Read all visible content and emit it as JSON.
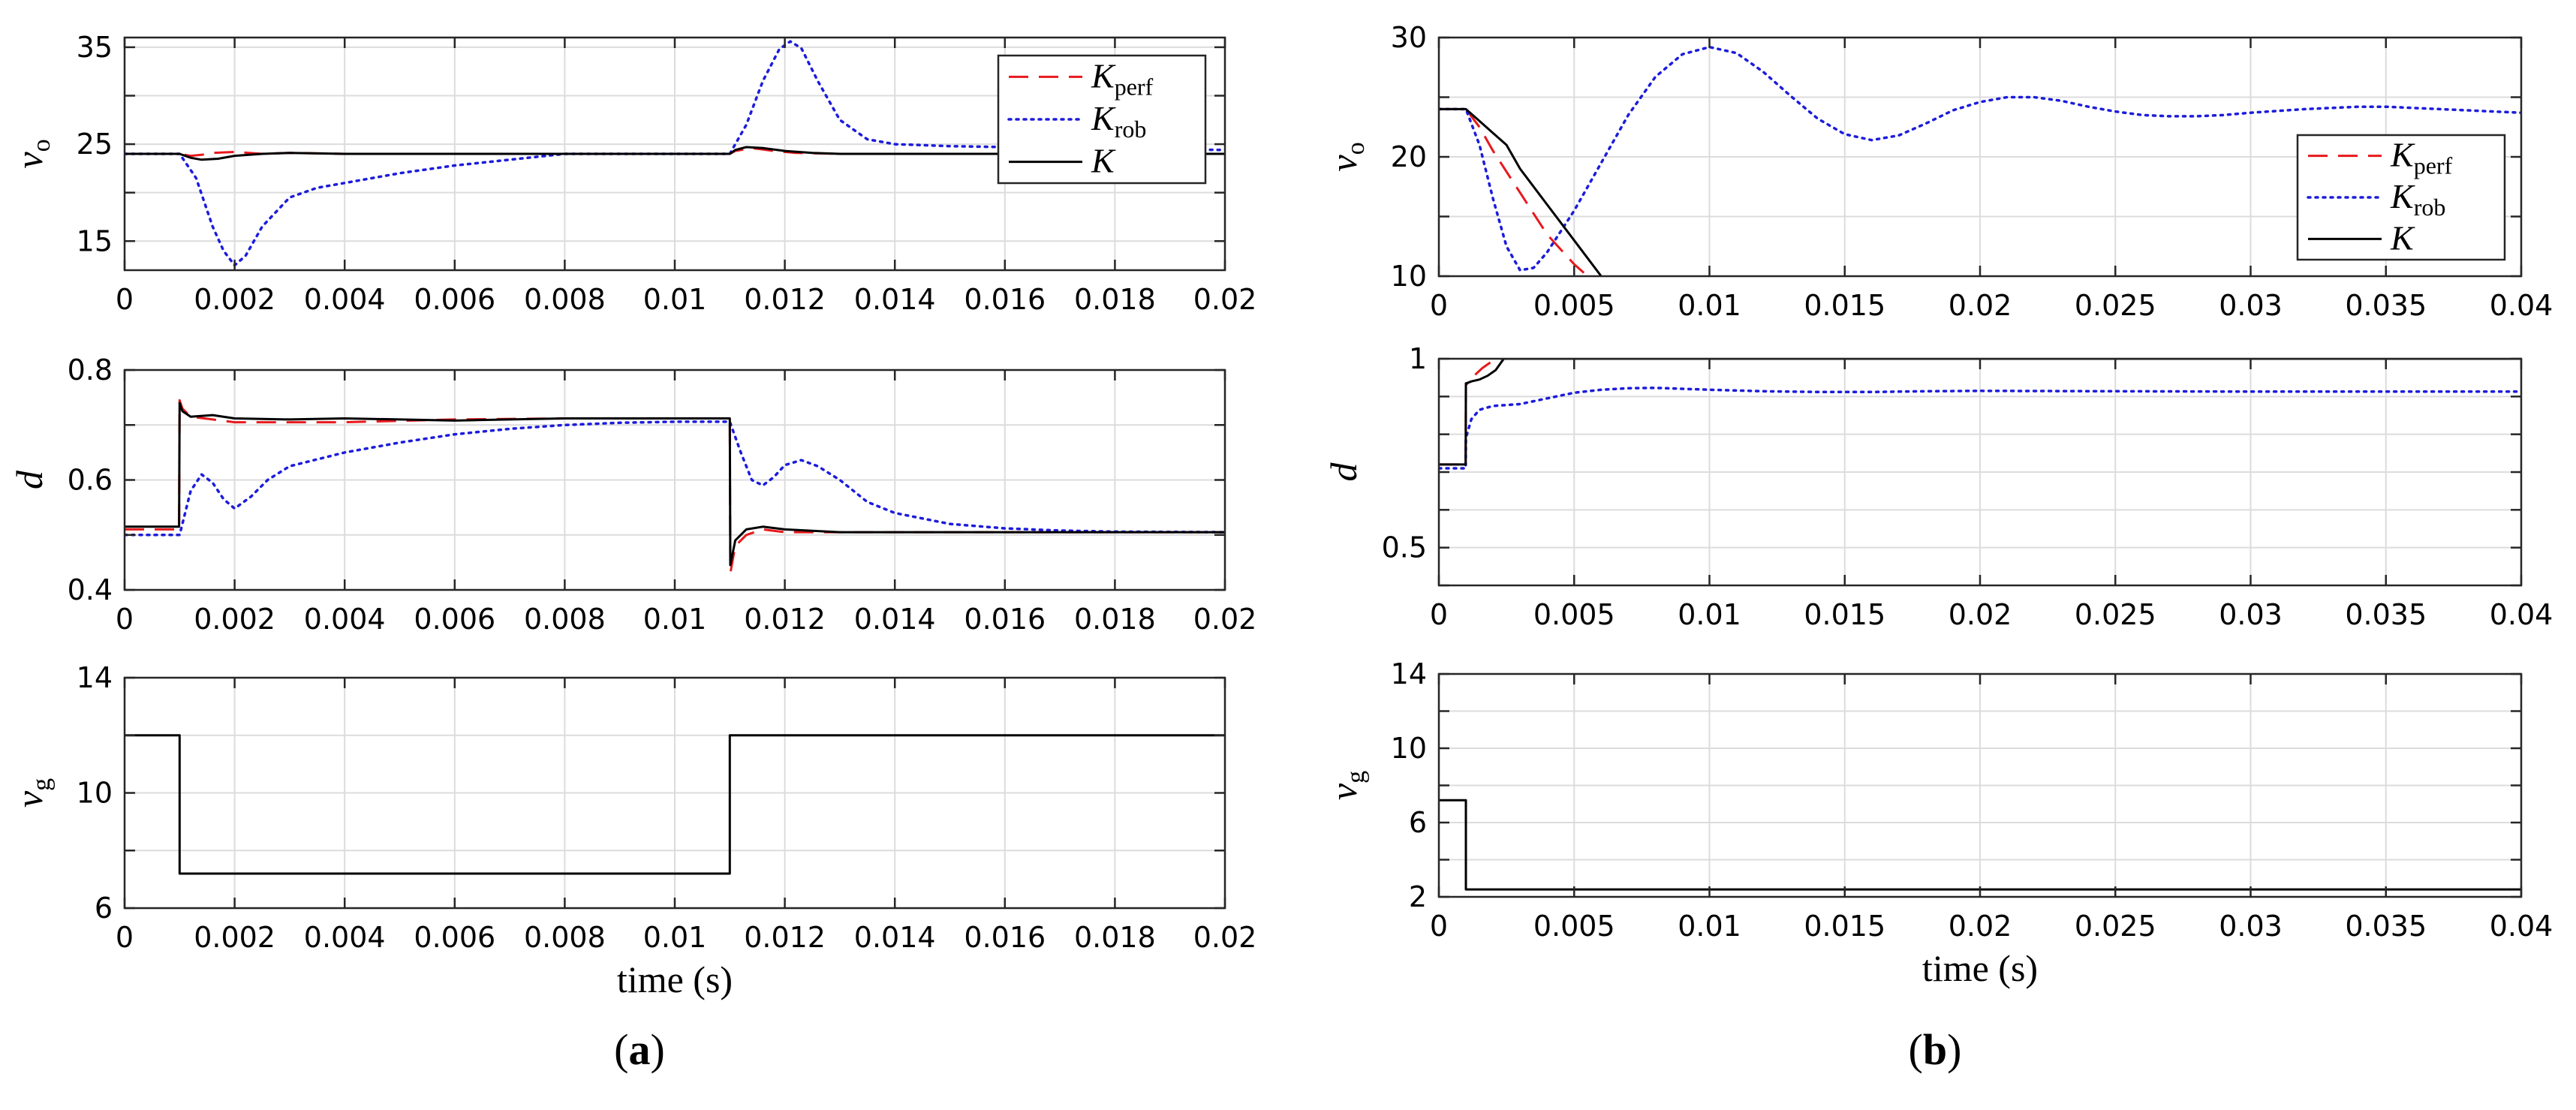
{
  "colors": {
    "K_perf": "#e8191c",
    "K_rob": "#1c1cdc",
    "K": "#000000",
    "input": "#000000"
  },
  "chart_data": [
    {
      "id": "a-vo",
      "type": "line",
      "panel": "a",
      "ylabel": "v",
      "ylabel_sub": "o",
      "xlim": [
        0,
        0.02
      ],
      "ylim": [
        12,
        36
      ],
      "xticks": [
        0,
        0.002,
        0.004,
        0.006,
        0.008,
        0.01,
        0.012,
        0.014,
        0.016,
        0.018,
        0.02
      ],
      "xtick_labels": [
        "0",
        "0.002",
        "0.004",
        "0.006",
        "0.008",
        "0.01",
        "0.012",
        "0.014",
        "0.016",
        "0.018",
        "0.02"
      ],
      "yticks": [
        15,
        25,
        35
      ],
      "ytick_labels": [
        "15",
        "25",
        "35"
      ],
      "ygrid": [
        15,
        20,
        25,
        30,
        35
      ],
      "legend": {
        "position": "top-right",
        "entries": [
          {
            "series": "K_perf",
            "label": "K",
            "sub": "perf"
          },
          {
            "series": "K_rob",
            "label": "K",
            "sub": "rob"
          },
          {
            "series": "K",
            "label": "K",
            "sub": ""
          }
        ]
      },
      "series": [
        {
          "name": "K_perf",
          "color_key": "K_perf",
          "dash": "dashed",
          "x": [
            0,
            0.001,
            0.0012,
            0.0014,
            0.0016,
            0.002,
            0.0025,
            0.003,
            0.004,
            0.011,
            0.0111,
            0.0114,
            0.0118,
            0.0122,
            0.013,
            0.02
          ],
          "y": [
            24,
            24,
            23.8,
            23.9,
            24.1,
            24.2,
            24.0,
            24.1,
            24.0,
            24.0,
            24.3,
            24.6,
            24.3,
            24.1,
            24.0,
            24.0
          ]
        },
        {
          "name": "K_rob",
          "color_key": "K_rob",
          "dash": "dotted",
          "x": [
            0,
            0.001,
            0.0013,
            0.0016,
            0.0018,
            0.002,
            0.0022,
            0.0025,
            0.003,
            0.0035,
            0.004,
            0.005,
            0.006,
            0.007,
            0.0075,
            0.008,
            0.009,
            0.01,
            0.011,
            0.0113,
            0.0116,
            0.0119,
            0.0121,
            0.0123,
            0.0126,
            0.013,
            0.0135,
            0.014,
            0.015,
            0.016,
            0.017,
            0.018,
            0.02
          ],
          "y": [
            24,
            24,
            21.5,
            16.5,
            14,
            12.5,
            13.5,
            16.5,
            19.5,
            20.5,
            21,
            22,
            22.8,
            23.4,
            23.7,
            24,
            24,
            24,
            24,
            27,
            31.5,
            34.8,
            35.6,
            34.9,
            31.5,
            27.5,
            25.5,
            25.0,
            24.8,
            24.7,
            24.6,
            24.5,
            24.4
          ]
        },
        {
          "name": "K",
          "color_key": "K",
          "dash": "solid",
          "x": [
            0,
            0.001,
            0.0012,
            0.0014,
            0.0017,
            0.002,
            0.0025,
            0.003,
            0.004,
            0.011,
            0.0111,
            0.0113,
            0.0116,
            0.012,
            0.0125,
            0.013,
            0.02
          ],
          "y": [
            24,
            24,
            23.6,
            23.4,
            23.5,
            23.8,
            24.0,
            24.1,
            24.0,
            24.0,
            24.4,
            24.7,
            24.6,
            24.3,
            24.1,
            24.0,
            24.0
          ]
        }
      ]
    },
    {
      "id": "a-d",
      "type": "line",
      "panel": "a",
      "ylabel": "d",
      "ylabel_sub": "",
      "xlim": [
        0,
        0.02
      ],
      "ylim": [
        0.4,
        0.8
      ],
      "xticks": [
        0,
        0.002,
        0.004,
        0.006,
        0.008,
        0.01,
        0.012,
        0.014,
        0.016,
        0.018,
        0.02
      ],
      "xtick_labels": [
        "0",
        "0.002",
        "0.004",
        "0.006",
        "0.008",
        "0.01",
        "0.012",
        "0.014",
        "0.016",
        "0.018",
        "0.02"
      ],
      "yticks": [
        0.4,
        0.6,
        0.8
      ],
      "ytick_labels": [
        "0.4",
        "0.6",
        "0.8"
      ],
      "ygrid": [
        0.4,
        0.5,
        0.6,
        0.7,
        0.8
      ],
      "series": [
        {
          "name": "K_perf",
          "color_key": "K_perf",
          "dash": "dashed",
          "x": [
            0,
            0.00099,
            0.001,
            0.00105,
            0.0012,
            0.0016,
            0.002,
            0.003,
            0.004,
            0.006,
            0.008,
            0.01,
            0.011,
            0.01101,
            0.0111,
            0.0113,
            0.0116,
            0.012,
            0.013,
            0.014,
            0.02
          ],
          "y": [
            0.51,
            0.51,
            0.745,
            0.73,
            0.715,
            0.71,
            0.705,
            0.705,
            0.705,
            0.71,
            0.712,
            0.712,
            0.712,
            0.43,
            0.48,
            0.5,
            0.51,
            0.505,
            0.505,
            0.505,
            0.505
          ]
        },
        {
          "name": "K_rob",
          "color_key": "K_rob",
          "dash": "dotted",
          "x": [
            0,
            0.001,
            0.0012,
            0.0014,
            0.0016,
            0.0018,
            0.002,
            0.0023,
            0.0026,
            0.003,
            0.004,
            0.005,
            0.006,
            0.007,
            0.008,
            0.009,
            0.01,
            0.011,
            0.0112,
            0.0114,
            0.0116,
            0.0118,
            0.012,
            0.0123,
            0.0126,
            0.013,
            0.0135,
            0.014,
            0.015,
            0.016,
            0.017,
            0.018,
            0.02
          ],
          "y": [
            0.5,
            0.5,
            0.58,
            0.61,
            0.595,
            0.565,
            0.548,
            0.57,
            0.6,
            0.625,
            0.65,
            0.668,
            0.683,
            0.693,
            0.7,
            0.704,
            0.706,
            0.706,
            0.65,
            0.6,
            0.59,
            0.605,
            0.627,
            0.636,
            0.625,
            0.6,
            0.56,
            0.54,
            0.52,
            0.512,
            0.508,
            0.506,
            0.505
          ]
        },
        {
          "name": "K",
          "color_key": "K",
          "dash": "solid",
          "x": [
            0,
            0.00099,
            0.001,
            0.00105,
            0.0012,
            0.0016,
            0.002,
            0.003,
            0.004,
            0.005,
            0.006,
            0.007,
            0.008,
            0.01,
            0.011,
            0.01101,
            0.0111,
            0.0113,
            0.0116,
            0.012,
            0.013,
            0.014,
            0.02
          ],
          "y": [
            0.515,
            0.515,
            0.74,
            0.725,
            0.715,
            0.718,
            0.712,
            0.71,
            0.712,
            0.71,
            0.708,
            0.71,
            0.712,
            0.712,
            0.712,
            0.445,
            0.49,
            0.51,
            0.515,
            0.51,
            0.505,
            0.505,
            0.505
          ]
        }
      ]
    },
    {
      "id": "a-vg",
      "type": "line",
      "panel": "a",
      "ylabel": "v",
      "ylabel_sub": "g",
      "xlim": [
        0,
        0.02
      ],
      "ylim": [
        6,
        14
      ],
      "xticks": [
        0,
        0.002,
        0.004,
        0.006,
        0.008,
        0.01,
        0.012,
        0.014,
        0.016,
        0.018,
        0.02
      ],
      "xtick_labels": [
        "0",
        "0.002",
        "0.004",
        "0.006",
        "0.008",
        "0.01",
        "0.012",
        "0.014",
        "0.016",
        "0.018",
        "0.02"
      ],
      "yticks": [
        6,
        10,
        14
      ],
      "ytick_labels": [
        "6",
        "10",
        "14"
      ],
      "ygrid": [
        6,
        8,
        10,
        12,
        14
      ],
      "xlabel": "time (s)",
      "series": [
        {
          "name": "v_g",
          "color_key": "input",
          "dash": "solid",
          "x": [
            0,
            0.001,
            0.001,
            0.011,
            0.011,
            0.02
          ],
          "y": [
            12,
            12,
            7.2,
            7.2,
            12,
            12
          ]
        }
      ]
    },
    {
      "id": "b-vo",
      "type": "line",
      "panel": "b",
      "ylabel": "v",
      "ylabel_sub": "o",
      "xlim": [
        0,
        0.04
      ],
      "ylim": [
        10,
        30
      ],
      "xticks": [
        0,
        0.005,
        0.01,
        0.015,
        0.02,
        0.025,
        0.03,
        0.035,
        0.04
      ],
      "xtick_labels": [
        "0",
        "0.005",
        "0.01",
        "0.015",
        "0.02",
        "0.025",
        "0.03",
        "0.035",
        "0.04"
      ],
      "yticks": [
        10,
        20,
        30
      ],
      "ytick_labels": [
        "10",
        "20",
        "30"
      ],
      "ygrid": [
        10,
        15,
        20,
        25,
        30
      ],
      "legend": {
        "position": "right",
        "entries": [
          {
            "series": "K_perf",
            "label": "K",
            "sub": "perf"
          },
          {
            "series": "K_rob",
            "label": "K",
            "sub": "rob"
          },
          {
            "series": "K",
            "label": "K",
            "sub": ""
          }
        ]
      },
      "series": [
        {
          "name": "K_perf",
          "color_key": "K_perf",
          "dash": "dashed",
          "x": [
            0,
            0.001,
            0.0015,
            0.002,
            0.003,
            0.004,
            0.005,
            0.0055
          ],
          "y": [
            24,
            24,
            22.5,
            20.5,
            17,
            13.5,
            11,
            10
          ]
        },
        {
          "name": "K_rob",
          "color_key": "K_rob",
          "dash": "dotted",
          "x": [
            0,
            0.001,
            0.0015,
            0.002,
            0.0025,
            0.003,
            0.0035,
            0.004,
            0.005,
            0.006,
            0.007,
            0.008,
            0.009,
            0.01,
            0.011,
            0.012,
            0.013,
            0.014,
            0.015,
            0.016,
            0.017,
            0.018,
            0.019,
            0.02,
            0.021,
            0.022,
            0.023,
            0.024,
            0.025,
            0.026,
            0.027,
            0.028,
            0.029,
            0.03,
            0.032,
            0.034,
            0.035,
            0.036,
            0.038,
            0.04
          ],
          "y": [
            24,
            24,
            21,
            16.5,
            12.5,
            10.5,
            10.7,
            12,
            15.5,
            19.5,
            23.5,
            26.7,
            28.6,
            29.2,
            28.7,
            27.1,
            25.1,
            23.2,
            21.9,
            21.4,
            21.8,
            22.8,
            23.9,
            24.6,
            25.0,
            25.0,
            24.7,
            24.2,
            23.8,
            23.5,
            23.4,
            23.4,
            23.5,
            23.7,
            24.0,
            24.2,
            24.2,
            24.1,
            23.9,
            23.7
          ]
        },
        {
          "name": "K",
          "color_key": "K",
          "dash": "solid",
          "x": [
            0,
            0.001,
            0.0015,
            0.002,
            0.0025,
            0.003,
            0.004,
            0.005,
            0.006
          ],
          "y": [
            24,
            24,
            23,
            22,
            21,
            19,
            16,
            13,
            10
          ]
        }
      ]
    },
    {
      "id": "b-d",
      "type": "line",
      "panel": "b",
      "ylabel": "d",
      "ylabel_sub": "",
      "xlim": [
        0,
        0.04
      ],
      "ylim": [
        0.4,
        1
      ],
      "xticks": [
        0,
        0.005,
        0.01,
        0.015,
        0.02,
        0.025,
        0.03,
        0.035,
        0.04
      ],
      "xtick_labels": [
        "0",
        "0.005",
        "0.01",
        "0.015",
        "0.02",
        "0.025",
        "0.03",
        "0.035",
        "0.04"
      ],
      "yticks": [
        0.5,
        1
      ],
      "ytick_labels": [
        "0.5",
        "1"
      ],
      "ygrid": [
        0.4,
        0.5,
        0.6,
        0.7,
        0.8,
        0.9,
        1.0
      ],
      "series": [
        {
          "name": "K_perf",
          "color_key": "K_perf",
          "dash": "dashed",
          "x": [
            0,
            0.00099,
            0.001,
            0.0013,
            0.0016,
            0.0019,
            0.0022,
            0.04
          ],
          "y": [
            0.72,
            0.72,
            0.93,
            0.955,
            0.975,
            0.99,
            1.0,
            1.0
          ]
        },
        {
          "name": "K_rob",
          "color_key": "K_rob",
          "dash": "dotted",
          "x": [
            0,
            0.00099,
            0.001,
            0.0012,
            0.0015,
            0.002,
            0.003,
            0.004,
            0.005,
            0.006,
            0.007,
            0.008,
            0.01,
            0.012,
            0.014,
            0.016,
            0.018,
            0.02,
            0.025,
            0.03,
            0.035,
            0.04
          ],
          "y": [
            0.71,
            0.71,
            0.79,
            0.84,
            0.865,
            0.875,
            0.88,
            0.895,
            0.91,
            0.918,
            0.922,
            0.923,
            0.918,
            0.914,
            0.912,
            0.912,
            0.914,
            0.915,
            0.914,
            0.913,
            0.913,
            0.913
          ]
        },
        {
          "name": "K",
          "color_key": "K",
          "dash": "solid",
          "x": [
            0,
            0.00099,
            0.001,
            0.00102,
            0.0012,
            0.0015,
            0.0018,
            0.0021,
            0.0024,
            0.04
          ],
          "y": [
            0.72,
            0.72,
            0.935,
            0.935,
            0.94,
            0.945,
            0.955,
            0.97,
            1.0,
            1.0
          ]
        }
      ]
    },
    {
      "id": "b-vg",
      "type": "line",
      "panel": "b",
      "ylabel": "v",
      "ylabel_sub": "g",
      "xlim": [
        0,
        0.04
      ],
      "ylim": [
        2,
        14
      ],
      "xticks": [
        0,
        0.005,
        0.01,
        0.015,
        0.02,
        0.025,
        0.03,
        0.035,
        0.04
      ],
      "xtick_labels": [
        "0",
        "0.005",
        "0.01",
        "0.015",
        "0.02",
        "0.025",
        "0.03",
        "0.035",
        "0.04"
      ],
      "yticks": [
        2,
        6,
        10,
        14
      ],
      "ytick_labels": [
        "2",
        "6",
        "10",
        "14"
      ],
      "ygrid": [
        2,
        4,
        6,
        8,
        10,
        12,
        14
      ],
      "xlabel": "time (s)",
      "series": [
        {
          "name": "v_g",
          "color_key": "input",
          "dash": "solid",
          "x": [
            0,
            0.001,
            0.001,
            0.04
          ],
          "y": [
            7.2,
            7.2,
            2.4,
            2.4
          ]
        }
      ]
    }
  ],
  "labels": {
    "panel_a": "a",
    "panel_b": "b",
    "paren_open": "(",
    "paren_close": ")"
  }
}
